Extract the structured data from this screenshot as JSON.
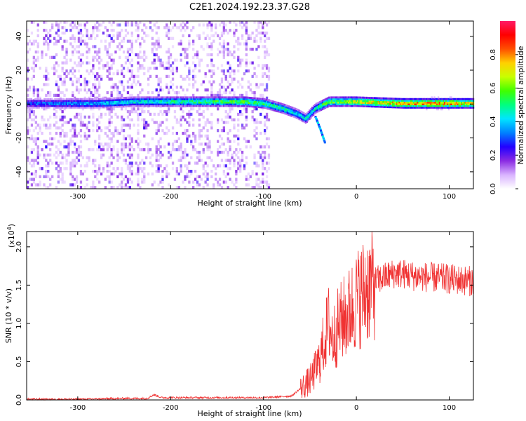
{
  "title": "C2E1.2024.192.23.37.G28",
  "chart_data": [
    {
      "type": "heatmap",
      "xlabel": "Height of straight line (km)",
      "ylabel": "Frequency (Hz)",
      "xlim": [
        -355,
        126
      ],
      "ylim": [
        -50,
        49
      ],
      "x_ticks": [
        -300,
        -200,
        -100,
        0,
        100
      ],
      "y_ticks": [
        -40,
        -20,
        0,
        20,
        40
      ],
      "colorbar": {
        "label": "Normalized spectral amplitude",
        "range": [
          0,
          1
        ],
        "ticks": [
          "0.0",
          "0.2",
          "0.4",
          "0.6",
          "0.8"
        ],
        "colormap": [
          "#ffffff",
          "#d9b3ff",
          "#8a2be2",
          "#2200ff",
          "#0080ff",
          "#00e5ff",
          "#00ff80",
          "#40ff00",
          "#c8ff00",
          "#ffd000",
          "#ff5000",
          "#ff0000",
          "#ff1a66"
        ]
      },
      "ridge": {
        "x": [
          -355,
          -320,
          -280,
          -240,
          -200,
          -160,
          -120,
          -100,
          -80,
          -65,
          -55,
          -45,
          -30,
          0,
          50,
          100,
          126
        ],
        "y": [
          0,
          0,
          0,
          1,
          1,
          1,
          1,
          0,
          -3,
          -6,
          -9,
          -3,
          1,
          1,
          0,
          0,
          0
        ],
        "peak_amplitude": [
          0.3,
          0.35,
          0.4,
          0.45,
          0.5,
          0.55,
          0.6,
          0.55,
          0.5,
          0.45,
          0.45,
          0.5,
          0.6,
          0.7,
          0.8,
          0.85,
          0.7
        ]
      },
      "branch": {
        "x": [
          -45,
          -40,
          -35
        ],
        "y": [
          -8,
          -15,
          -23
        ]
      },
      "noise_field_xrange": [
        -355,
        -95
      ]
    },
    {
      "type": "line",
      "xlabel": "Height of straight line (km)",
      "ylabel": "SNR (10 * v/v)",
      "exponent_label": "(x10",
      "exponent": "4",
      "exponent_close": ")",
      "xlim": [
        -355,
        126
      ],
      "ylim": [
        0,
        2.2
      ],
      "x_ticks": [
        -300,
        -200,
        -100,
        0,
        100
      ],
      "y_ticks": [
        "0.0",
        "0.5",
        "1.0",
        "1.5",
        "2.0"
      ],
      "color": "#f03232",
      "x": [
        -355,
        -300,
        -250,
        -225,
        -218,
        -210,
        -150,
        -100,
        -70,
        -60,
        -50,
        -40,
        -35,
        -30,
        -25,
        -20,
        -15,
        -10,
        -5,
        0,
        10,
        20,
        30,
        40,
        50,
        60,
        80,
        100,
        126
      ],
      "y": [
        0.01,
        0.01,
        0.02,
        0.02,
        0.07,
        0.03,
        0.03,
        0.03,
        0.05,
        0.15,
        0.25,
        0.5,
        0.75,
        1.0,
        0.8,
        0.95,
        1.05,
        1.1,
        1.2,
        1.3,
        1.45,
        1.55,
        1.6,
        1.65,
        1.65,
        1.62,
        1.6,
        1.58,
        1.55
      ]
    }
  ]
}
